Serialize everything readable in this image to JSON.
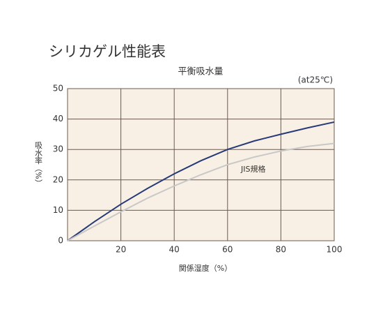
{
  "chart_data": {
    "type": "line",
    "title": "シリカゲル性能表",
    "subtitle": "平衡吸水量",
    "annotation": "(at25℃)",
    "x_label": "関係湿度（%）",
    "y_label": "吸水率（%）",
    "x": [
      0,
      10,
      20,
      30,
      40,
      50,
      60,
      70,
      80,
      90,
      100
    ],
    "series": [
      {
        "color": "#263a78",
        "values": [
          0,
          6.2,
          12,
          17.2,
          22,
          26.3,
          30,
          32.8,
          35,
          37.1,
          39
        ]
      },
      {
        "name": "JIS規格",
        "color": "#c8c8c8",
        "values": [
          0,
          4.8,
          9.5,
          14,
          18,
          21.7,
          25,
          27.5,
          29.5,
          31,
          32
        ]
      }
    ],
    "xlim": [
      0,
      100
    ],
    "xticks": [
      20,
      40,
      60,
      80,
      100
    ],
    "ylim": [
      0,
      50
    ],
    "yticks": [
      0,
      10,
      20,
      30,
      40,
      50
    ],
    "grid": true
  }
}
